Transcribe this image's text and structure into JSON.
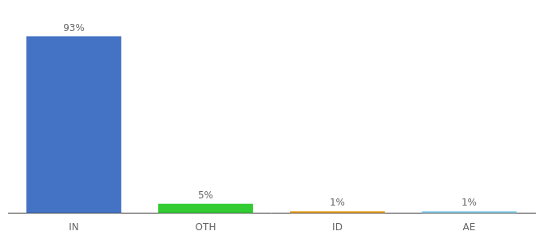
{
  "chart_data": {
    "type": "bar",
    "categories": [
      "IN",
      "OTH",
      "ID",
      "AE"
    ],
    "values": [
      93,
      5,
      1,
      1
    ],
    "value_labels": [
      "93%",
      "5%",
      "1%",
      "1%"
    ],
    "colors": [
      "#4472C4",
      "#33CC33",
      "#E8A020",
      "#87CEEB"
    ],
    "ylim": [
      0,
      102
    ],
    "grid": false,
    "data_labels": true,
    "tick_labels": "x"
  }
}
